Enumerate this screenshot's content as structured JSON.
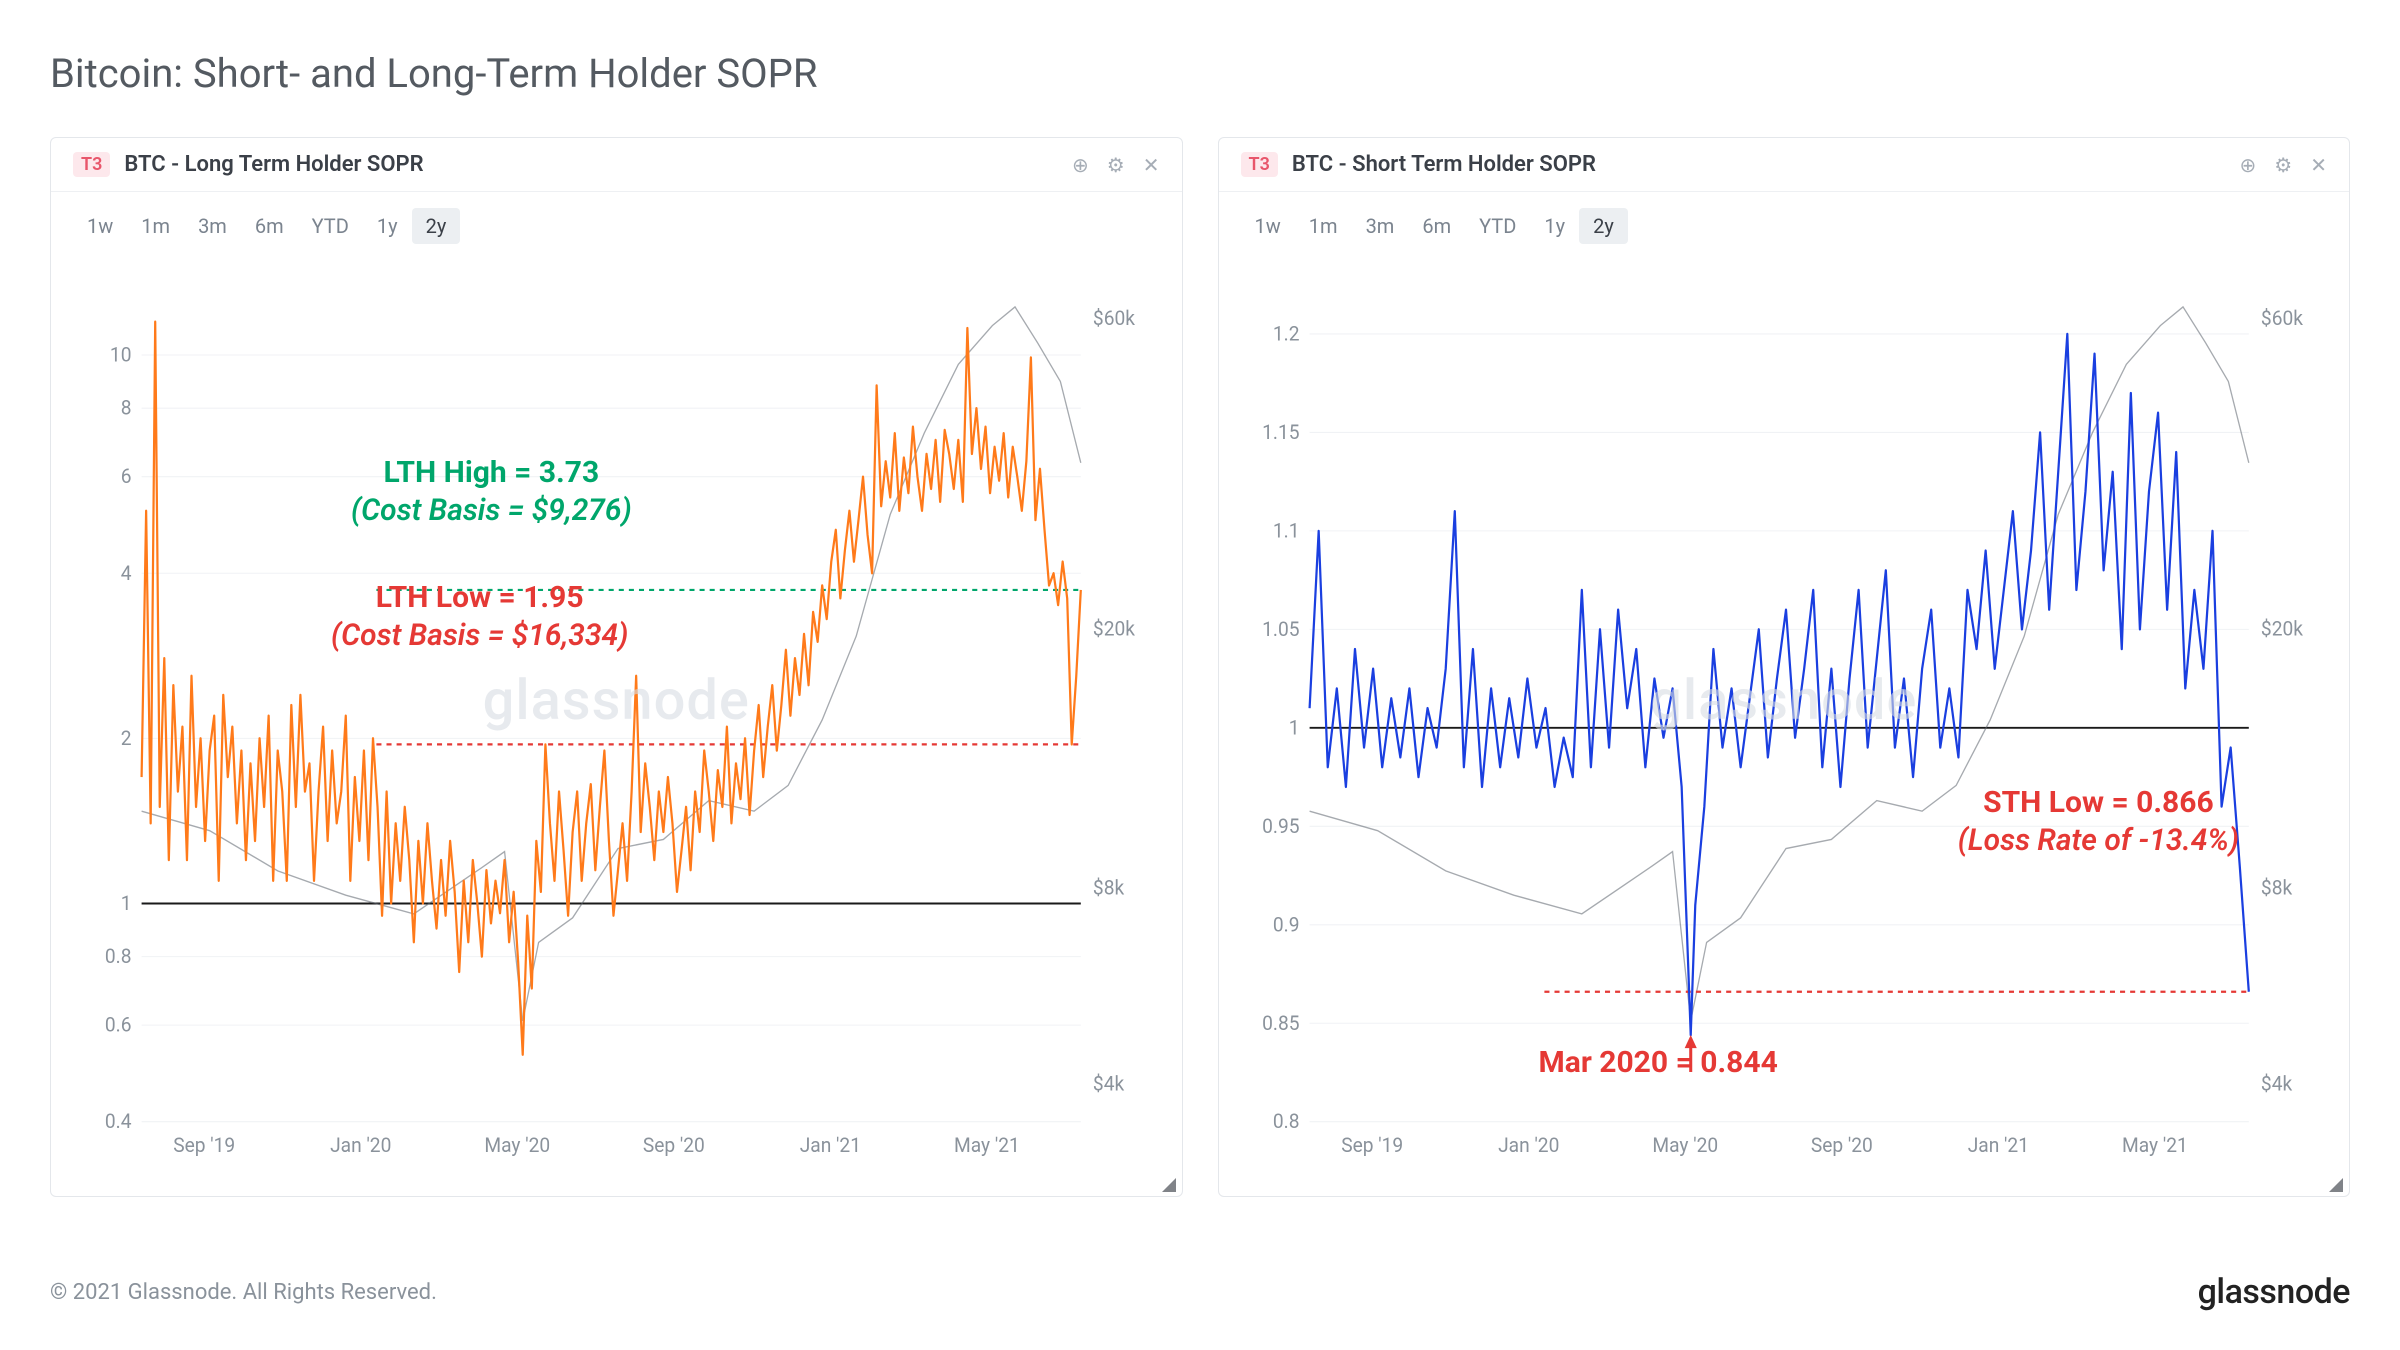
{
  "page_title": "Bitcoin: Short- and Long-Term Holder SOPR",
  "copyright": "© 2021 Glassnode. All Rights Reserved.",
  "brand": "glassnode",
  "watermark": "glassnode",
  "range_buttons": [
    "1w",
    "1m",
    "3m",
    "6m",
    "YTD",
    "1y",
    "2y"
  ],
  "range_active_index": 6,
  "left_chart": {
    "badge": "T3",
    "title": "BTC - Long Term Holder SOPR",
    "type": "line",
    "series_color": "#ff7a1a",
    "series_width": 2.2,
    "price_color": "#5c646e",
    "background_color": "#ffffff",
    "grid_color": "#f0f2f5",
    "y_scale": "log",
    "y_ticks": [
      0.4,
      0.6,
      0.8,
      1,
      2,
      4,
      6,
      8,
      10
    ],
    "y_tick_labels": [
      "0.4",
      "0.6",
      "0.8",
      "1",
      "2",
      "4",
      "6",
      "8",
      "10"
    ],
    "ylim": [
      0.4,
      14
    ],
    "y2_ticks": [
      4000,
      8000,
      20000,
      60000
    ],
    "y2_tick_labels": [
      "$4k",
      "$8k",
      "$20k",
      "$60k"
    ],
    "y2_scale": "log",
    "y2_lim": [
      3500,
      70000
    ],
    "x_ticks": [
      "Sep '19",
      "Jan '20",
      "May '20",
      "Sep '20",
      "Jan '21",
      "May '21"
    ],
    "baseline_y": 1,
    "dash_high_y": 3.73,
    "dash_low_y": 1.95,
    "annotations": {
      "high_title": "LTH High = 3.73",
      "high_sub": "(Cost Basis = $9,276)",
      "low_title": "LTH Low = 1.95",
      "low_sub": "(Cost Basis = $16,334)"
    },
    "sopr_data": [
      [
        0,
        1.7
      ],
      [
        2,
        5.2
      ],
      [
        4,
        1.4
      ],
      [
        6,
        11.5
      ],
      [
        8,
        1.5
      ],
      [
        10,
        2.8
      ],
      [
        12,
        1.2
      ],
      [
        14,
        2.5
      ],
      [
        16,
        1.6
      ],
      [
        18,
        2.1
      ],
      [
        20,
        1.2
      ],
      [
        22,
        2.6
      ],
      [
        24,
        1.5
      ],
      [
        26,
        2.0
      ],
      [
        28,
        1.3
      ],
      [
        30,
        1.9
      ],
      [
        32,
        2.2
      ],
      [
        34,
        1.1
      ],
      [
        36,
        2.4
      ],
      [
        38,
        1.7
      ],
      [
        40,
        2.1
      ],
      [
        42,
        1.4
      ],
      [
        44,
        1.9
      ],
      [
        46,
        1.2
      ],
      [
        48,
        1.8
      ],
      [
        50,
        1.3
      ],
      [
        52,
        2.0
      ],
      [
        54,
        1.5
      ],
      [
        56,
        2.2
      ],
      [
        58,
        1.1
      ],
      [
        60,
        1.9
      ],
      [
        62,
        1.6
      ],
      [
        64,
        1.1
      ],
      [
        66,
        2.3
      ],
      [
        68,
        1.5
      ],
      [
        70,
        2.4
      ],
      [
        72,
        1.6
      ],
      [
        74,
        1.8
      ],
      [
        76,
        1.1
      ],
      [
        78,
        1.6
      ],
      [
        80,
        2.1
      ],
      [
        82,
        1.3
      ],
      [
        84,
        1.9
      ],
      [
        86,
        1.4
      ],
      [
        88,
        1.6
      ],
      [
        90,
        2.2
      ],
      [
        92,
        1.1
      ],
      [
        94,
        1.7
      ],
      [
        96,
        1.3
      ],
      [
        98,
        1.9
      ],
      [
        100,
        1.2
      ],
      [
        102,
        2.0
      ],
      [
        104,
        1.5
      ],
      [
        106,
        0.95
      ],
      [
        108,
        1.6
      ],
      [
        110,
        1.0
      ],
      [
        112,
        1.4
      ],
      [
        114,
        1.1
      ],
      [
        116,
        1.5
      ],
      [
        118,
        1.2
      ],
      [
        120,
        0.85
      ],
      [
        122,
        1.3
      ],
      [
        124,
        1.0
      ],
      [
        126,
        1.4
      ],
      [
        128,
        1.1
      ],
      [
        130,
        0.9
      ],
      [
        132,
        1.2
      ],
      [
        134,
        0.95
      ],
      [
        136,
        1.3
      ],
      [
        138,
        1.05
      ],
      [
        140,
        0.75
      ],
      [
        142,
        1.1
      ],
      [
        144,
        0.85
      ],
      [
        146,
        1.2
      ],
      [
        148,
        1.0
      ],
      [
        150,
        0.8
      ],
      [
        152,
        1.15
      ],
      [
        154,
        0.92
      ],
      [
        156,
        1.1
      ],
      [
        158,
        0.96
      ],
      [
        160,
        1.2
      ],
      [
        162,
        0.85
      ],
      [
        164,
        1.05
      ],
      [
        166,
        0.78
      ],
      [
        168,
        0.53
      ],
      [
        170,
        0.95
      ],
      [
        172,
        0.7
      ],
      [
        174,
        1.3
      ],
      [
        176,
        1.05
      ],
      [
        178,
        1.95
      ],
      [
        180,
        1.4
      ],
      [
        182,
        1.1
      ],
      [
        184,
        1.6
      ],
      [
        186,
        1.25
      ],
      [
        188,
        0.95
      ],
      [
        190,
        1.35
      ],
      [
        192,
        1.6
      ],
      [
        194,
        1.1
      ],
      [
        196,
        1.4
      ],
      [
        198,
        1.65
      ],
      [
        200,
        1.15
      ],
      [
        202,
        1.5
      ],
      [
        204,
        1.9
      ],
      [
        206,
        1.3
      ],
      [
        208,
        0.95
      ],
      [
        210,
        1.15
      ],
      [
        212,
        1.4
      ],
      [
        214,
        1.1
      ],
      [
        216,
        1.6
      ],
      [
        218,
        2.6
      ],
      [
        220,
        1.35
      ],
      [
        222,
        1.8
      ],
      [
        224,
        1.5
      ],
      [
        226,
        1.2
      ],
      [
        228,
        1.6
      ],
      [
        230,
        1.35
      ],
      [
        232,
        1.7
      ],
      [
        234,
        1.4
      ],
      [
        236,
        1.05
      ],
      [
        238,
        1.25
      ],
      [
        240,
        1.5
      ],
      [
        242,
        1.15
      ],
      [
        244,
        1.6
      ],
      [
        246,
        1.35
      ],
      [
        248,
        1.9
      ],
      [
        250,
        1.6
      ],
      [
        252,
        1.3
      ],
      [
        254,
        1.75
      ],
      [
        256,
        1.5
      ],
      [
        258,
        2.1
      ],
      [
        260,
        1.4
      ],
      [
        262,
        1.8
      ],
      [
        264,
        1.55
      ],
      [
        266,
        2.0
      ],
      [
        268,
        1.45
      ],
      [
        270,
        1.9
      ],
      [
        272,
        2.3
      ],
      [
        274,
        1.7
      ],
      [
        276,
        2.1
      ],
      [
        278,
        2.5
      ],
      [
        280,
        1.9
      ],
      [
        282,
        2.3
      ],
      [
        284,
        2.9
      ],
      [
        286,
        2.2
      ],
      [
        288,
        2.8
      ],
      [
        290,
        2.4
      ],
      [
        292,
        3.1
      ],
      [
        294,
        2.5
      ],
      [
        296,
        3.4
      ],
      [
        298,
        3.0
      ],
      [
        300,
        3.8
      ],
      [
        302,
        3.3
      ],
      [
        304,
        4.2
      ],
      [
        306,
        4.8
      ],
      [
        308,
        3.6
      ],
      [
        310,
        4.4
      ],
      [
        312,
        5.2
      ],
      [
        314,
        4.2
      ],
      [
        316,
        5.0
      ],
      [
        318,
        6.0
      ],
      [
        320,
        4.7
      ],
      [
        322,
        4.0
      ],
      [
        324,
        8.8
      ],
      [
        326,
        5.3
      ],
      [
        328,
        6.4
      ],
      [
        330,
        5.5
      ],
      [
        332,
        7.2
      ],
      [
        334,
        5.2
      ],
      [
        336,
        6.5
      ],
      [
        338,
        5.6
      ],
      [
        340,
        7.4
      ],
      [
        342,
        6.0
      ],
      [
        344,
        5.2
      ],
      [
        346,
        6.6
      ],
      [
        348,
        5.7
      ],
      [
        350,
        7.0
      ],
      [
        352,
        5.4
      ],
      [
        354,
        7.3
      ],
      [
        356,
        6.6
      ],
      [
        358,
        5.7
      ],
      [
        360,
        7.0
      ],
      [
        362,
        5.4
      ],
      [
        364,
        11.2
      ],
      [
        366,
        6.6
      ],
      [
        368,
        8.0
      ],
      [
        370,
        6.2
      ],
      [
        372,
        7.4
      ],
      [
        374,
        5.6
      ],
      [
        376,
        6.8
      ],
      [
        378,
        5.9
      ],
      [
        380,
        7.2
      ],
      [
        382,
        5.5
      ],
      [
        384,
        6.8
      ],
      [
        386,
        6.0
      ],
      [
        388,
        5.2
      ],
      [
        390,
        6.4
      ],
      [
        392,
        9.9
      ],
      [
        394,
        5.0
      ],
      [
        396,
        6.2
      ],
      [
        398,
        4.8
      ],
      [
        400,
        3.8
      ],
      [
        402,
        4.0
      ],
      [
        404,
        3.5
      ],
      [
        406,
        4.2
      ],
      [
        408,
        3.6
      ],
      [
        410,
        1.95
      ],
      [
        412,
        2.6
      ],
      [
        414,
        3.73
      ]
    ],
    "price_data": [
      [
        0,
        10500
      ],
      [
        30,
        9800
      ],
      [
        60,
        8500
      ],
      [
        90,
        7800
      ],
      [
        120,
        7300
      ],
      [
        150,
        8600
      ],
      [
        160,
        9100
      ],
      [
        168,
        5000
      ],
      [
        175,
        6600
      ],
      [
        190,
        7200
      ],
      [
        210,
        9200
      ],
      [
        230,
        9500
      ],
      [
        250,
        10900
      ],
      [
        270,
        10500
      ],
      [
        285,
        11500
      ],
      [
        300,
        14500
      ],
      [
        315,
        19500
      ],
      [
        330,
        30000
      ],
      [
        345,
        40000
      ],
      [
        360,
        51000
      ],
      [
        375,
        58500
      ],
      [
        385,
        62500
      ],
      [
        395,
        55000
      ],
      [
        405,
        48000
      ],
      [
        414,
        36000
      ]
    ]
  },
  "right_chart": {
    "badge": "T3",
    "title": "BTC - Short Term Holder SOPR",
    "type": "line",
    "series_color": "#1a3fe0",
    "series_width": 2.2,
    "price_color": "#5c646e",
    "background_color": "#ffffff",
    "grid_color": "#f0f2f5",
    "y_scale": "linear",
    "y_ticks": [
      0.8,
      0.85,
      0.9,
      0.95,
      1,
      1.05,
      1.1,
      1.15,
      1.2
    ],
    "y_tick_labels": [
      "0.8",
      "0.85",
      "0.9",
      "0.95",
      "1",
      "1.05",
      "1.1",
      "1.15",
      "1.2"
    ],
    "ylim": [
      0.8,
      1.23
    ],
    "y2_ticks": [
      4000,
      8000,
      20000,
      60000
    ],
    "y2_tick_labels": [
      "$4k",
      "$8k",
      "$20k",
      "$60k"
    ],
    "y2_scale": "log",
    "y2_lim": [
      3500,
      70000
    ],
    "x_ticks": [
      "Sep '19",
      "Jan '20",
      "May '20",
      "Sep '20",
      "Jan '21",
      "May '21"
    ],
    "baseline_y": 1,
    "dash_low_y": 0.866,
    "annotations": {
      "sth_low_title": "STH Low = 0.866",
      "sth_low_sub": "(Loss Rate of -13.4%)",
      "mar2020": "Mar 2020 = 0.844"
    },
    "sopr_data": [
      [
        0,
        1.01
      ],
      [
        4,
        1.1
      ],
      [
        8,
        0.98
      ],
      [
        12,
        1.02
      ],
      [
        16,
        0.97
      ],
      [
        20,
        1.04
      ],
      [
        24,
        0.99
      ],
      [
        28,
        1.03
      ],
      [
        32,
        0.98
      ],
      [
        36,
        1.015
      ],
      [
        40,
        0.985
      ],
      [
        44,
        1.02
      ],
      [
        48,
        0.975
      ],
      [
        52,
        1.01
      ],
      [
        56,
        0.99
      ],
      [
        60,
        1.03
      ],
      [
        64,
        1.11
      ],
      [
        68,
        0.98
      ],
      [
        72,
        1.04
      ],
      [
        76,
        0.97
      ],
      [
        80,
        1.02
      ],
      [
        84,
        0.98
      ],
      [
        88,
        1.015
      ],
      [
        92,
        0.985
      ],
      [
        96,
        1.025
      ],
      [
        100,
        0.99
      ],
      [
        104,
        1.01
      ],
      [
        108,
        0.97
      ],
      [
        112,
        0.995
      ],
      [
        116,
        0.975
      ],
      [
        120,
        1.07
      ],
      [
        124,
        0.98
      ],
      [
        128,
        1.05
      ],
      [
        132,
        0.99
      ],
      [
        136,
        1.06
      ],
      [
        140,
        1.01
      ],
      [
        144,
        1.04
      ],
      [
        148,
        0.98
      ],
      [
        152,
        1.025
      ],
      [
        156,
        0.995
      ],
      [
        160,
        1.02
      ],
      [
        164,
        0.97
      ],
      [
        168,
        0.844
      ],
      [
        170,
        0.91
      ],
      [
        174,
        0.96
      ],
      [
        178,
        1.04
      ],
      [
        182,
        0.99
      ],
      [
        186,
        1.02
      ],
      [
        190,
        0.98
      ],
      [
        194,
        1.015
      ],
      [
        198,
        1.05
      ],
      [
        202,
        0.985
      ],
      [
        206,
        1.025
      ],
      [
        210,
        1.06
      ],
      [
        214,
        0.995
      ],
      [
        218,
        1.03
      ],
      [
        222,
        1.07
      ],
      [
        226,
        0.98
      ],
      [
        230,
        1.03
      ],
      [
        234,
        0.97
      ],
      [
        238,
        1.025
      ],
      [
        242,
        1.07
      ],
      [
        246,
        0.99
      ],
      [
        250,
        1.035
      ],
      [
        254,
        1.08
      ],
      [
        258,
        0.99
      ],
      [
        262,
        1.025
      ],
      [
        266,
        0.975
      ],
      [
        270,
        1.03
      ],
      [
        274,
        1.06
      ],
      [
        278,
        0.99
      ],
      [
        282,
        1.02
      ],
      [
        286,
        0.985
      ],
      [
        290,
        1.07
      ],
      [
        294,
        1.04
      ],
      [
        298,
        1.09
      ],
      [
        302,
        1.03
      ],
      [
        306,
        1.07
      ],
      [
        310,
        1.11
      ],
      [
        314,
        1.05
      ],
      [
        318,
        1.09
      ],
      [
        322,
        1.15
      ],
      [
        326,
        1.06
      ],
      [
        330,
        1.13
      ],
      [
        334,
        1.2
      ],
      [
        338,
        1.07
      ],
      [
        342,
        1.12
      ],
      [
        346,
        1.19
      ],
      [
        350,
        1.08
      ],
      [
        354,
        1.13
      ],
      [
        358,
        1.04
      ],
      [
        362,
        1.17
      ],
      [
        366,
        1.05
      ],
      [
        370,
        1.12
      ],
      [
        374,
        1.16
      ],
      [
        378,
        1.06
      ],
      [
        382,
        1.14
      ],
      [
        386,
        1.02
      ],
      [
        390,
        1.07
      ],
      [
        394,
        1.03
      ],
      [
        398,
        1.1
      ],
      [
        402,
        0.96
      ],
      [
        406,
        0.99
      ],
      [
        410,
        0.93
      ],
      [
        414,
        0.866
      ]
    ],
    "price_data": [
      [
        0,
        10500
      ],
      [
        30,
        9800
      ],
      [
        60,
        8500
      ],
      [
        90,
        7800
      ],
      [
        120,
        7300
      ],
      [
        150,
        8600
      ],
      [
        160,
        9100
      ],
      [
        168,
        5000
      ],
      [
        175,
        6600
      ],
      [
        190,
        7200
      ],
      [
        210,
        9200
      ],
      [
        230,
        9500
      ],
      [
        250,
        10900
      ],
      [
        270,
        10500
      ],
      [
        285,
        11500
      ],
      [
        300,
        14500
      ],
      [
        315,
        19500
      ],
      [
        330,
        30000
      ],
      [
        345,
        40000
      ],
      [
        360,
        51000
      ],
      [
        375,
        58500
      ],
      [
        385,
        62500
      ],
      [
        395,
        55000
      ],
      [
        405,
        48000
      ],
      [
        414,
        36000
      ]
    ]
  }
}
